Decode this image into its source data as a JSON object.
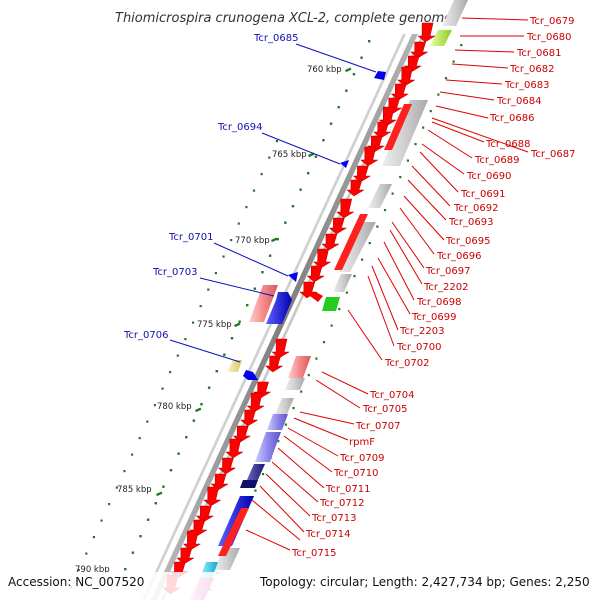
{
  "title": "Thiomicrospira crunogena XCL-2, complete genome",
  "footer": {
    "accession": "Accession: NC_007520",
    "topology": "Topology: circular; Length: 2,427,734 bp; Genes: 2,250"
  },
  "colors": {
    "forward_label": "#cc0000",
    "reverse_label": "#1010b0",
    "cds_forward": "#ff0000",
    "cds_reverse": "#0000ee",
    "backbone": "#888888",
    "tick": "#1f7a1f"
  },
  "kbp_labels": [
    "760 kbp",
    "765 kbp",
    "770 kbp",
    "775 kbp",
    "780 kbp",
    "785 kbp",
    "790 kbp"
  ],
  "reverse_labels": [
    "Tcr_0685",
    "Tcr_0694",
    "Tcr_0701",
    "Tcr_0703",
    "Tcr_0706"
  ],
  "forward_labels": [
    "Tcr_0679",
    "Tcr_0680",
    "Tcr_0681",
    "Tcr_0682",
    "Tcr_0683",
    "Tcr_0684",
    "Tcr_0686",
    "Tcr_0687",
    "Tcr_0688",
    "Tcr_0689",
    "Tcr_0690",
    "Tcr_0691",
    "Tcr_0692",
    "Tcr_0693",
    "Tcr_0695",
    "Tcr_0696",
    "Tcr_0697",
    "Tcr_2202",
    "Tcr_0698",
    "Tcr_0699",
    "Tcr_2203",
    "Tcr_0700",
    "Tcr_0702",
    "Tcr_0704",
    "Tcr_0705",
    "Tcr_0707",
    "rpmF",
    "Tcr_0709",
    "Tcr_0710",
    "Tcr_0711",
    "Tcr_0712",
    "Tcr_0713",
    "Tcr_0714",
    "Tcr_0715"
  ]
}
